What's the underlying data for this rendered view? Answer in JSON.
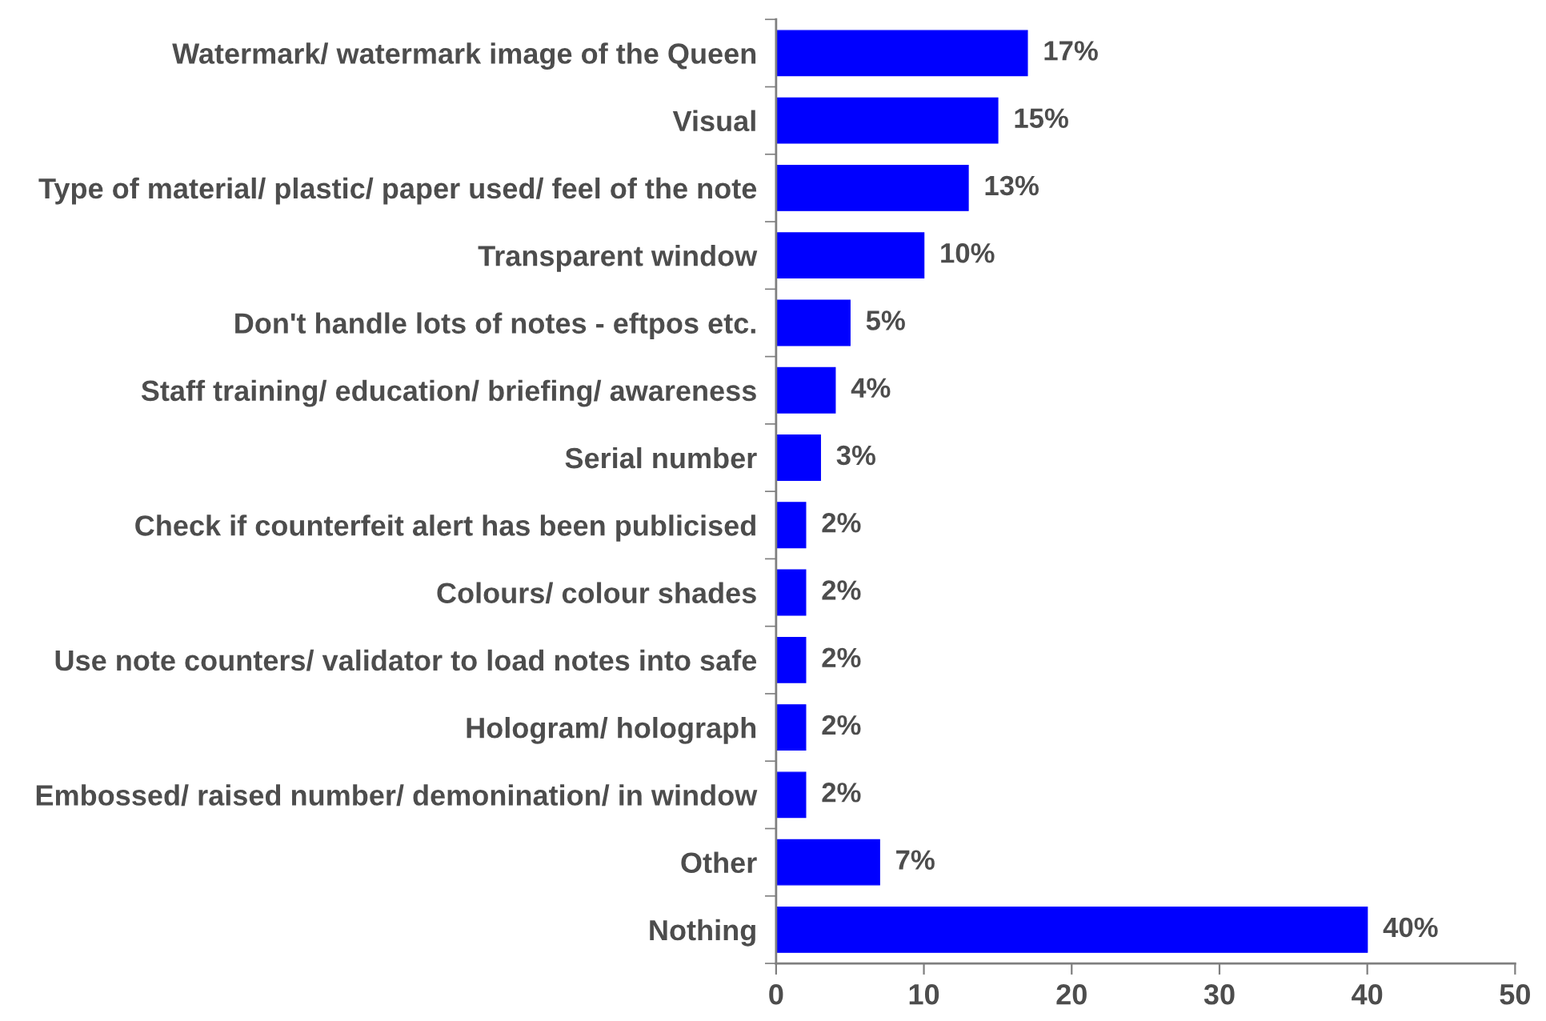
{
  "chart_data": {
    "type": "bar",
    "orientation": "horizontal",
    "categories": [
      "Watermark/ watermark image of the Queen",
      "Visual",
      "Type of material/ plastic/ paper used/ feel of the note",
      "Transparent window",
      "Don't handle lots of notes - eftpos etc.",
      "Staff training/ education/ briefing/ awareness",
      "Serial number",
      "Check if counterfeit alert has been publicised",
      "Colours/ colour shades",
      "Use note counters/ validator to load notes into safe",
      "Hologram/ holograph",
      "Embossed/ raised number/ demonination/ in window",
      "Other",
      "Nothing"
    ],
    "values": [
      17,
      15,
      13,
      10,
      5,
      4,
      3,
      2,
      2,
      2,
      2,
      2,
      7,
      40
    ],
    "color": "#0000ff",
    "value_labels": [
      "17%",
      "15%",
      "13%",
      "10%",
      "5%",
      "4%",
      "3%",
      "2%",
      "2%",
      "2%",
      "2%",
      "2%",
      "7%",
      "40%"
    ],
    "xlim": [
      0,
      50
    ],
    "xticks": [
      0,
      10,
      20,
      30,
      40,
      50
    ]
  }
}
